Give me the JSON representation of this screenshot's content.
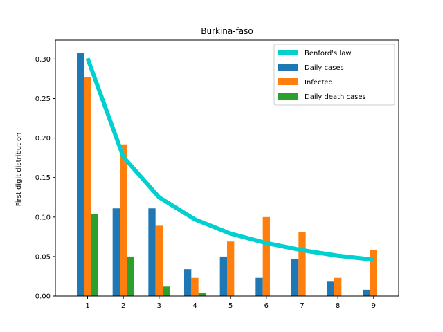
{
  "chart_data": {
    "type": "bar",
    "title": "Burkina-faso",
    "xlabel": "",
    "ylabel": "First digit distribution",
    "categories": [
      "1",
      "2",
      "3",
      "4",
      "5",
      "6",
      "7",
      "8",
      "9"
    ],
    "x": [
      1,
      2,
      3,
      4,
      5,
      6,
      7,
      8,
      9
    ],
    "xlim": [
      0.1,
      9.7
    ],
    "ylim": [
      0,
      0.324
    ],
    "yticks": [
      0.0,
      0.05,
      0.1,
      0.15,
      0.2,
      0.25,
      0.3
    ],
    "ytick_labels": [
      "0.00",
      "0.05",
      "0.10",
      "0.15",
      "0.20",
      "0.25",
      "0.30"
    ],
    "grid": false,
    "legend_position": "top-right",
    "line_series": {
      "name": "Benford's law",
      "color": "#00d0d0",
      "values": [
        0.301,
        0.176,
        0.125,
        0.097,
        0.079,
        0.067,
        0.058,
        0.051,
        0.046
      ]
    },
    "series": [
      {
        "name": "Daily cases",
        "color": "#1f77b4",
        "values": [
          0.308,
          0.111,
          0.111,
          0.034,
          0.05,
          0.023,
          0.047,
          0.019,
          0.008
        ]
      },
      {
        "name": "Infected",
        "color": "#ff7f0e",
        "values": [
          0.277,
          0.192,
          0.089,
          0.023,
          0.069,
          0.1,
          0.081,
          0.023,
          0.058
        ]
      },
      {
        "name": "Daily death cases",
        "color": "#2ca02c",
        "values": [
          0.104,
          0.05,
          0.012,
          0.004,
          0.0,
          0.0,
          0.0,
          0.0,
          0.0
        ]
      }
    ]
  }
}
